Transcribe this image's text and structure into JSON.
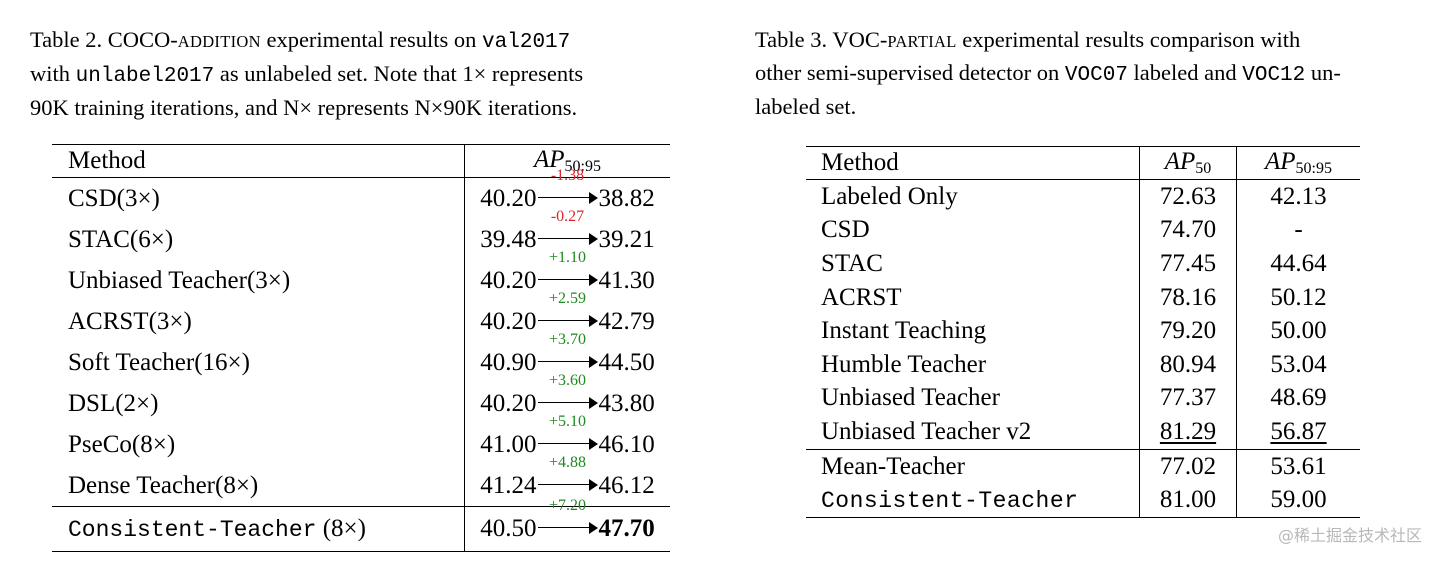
{
  "table2": {
    "caption": {
      "line1": {
        "a": "Table 2.  COCO-",
        "sc": "ADDITION",
        "b": " experimental results on ",
        "mono": "val2017"
      },
      "line2": {
        "a": "with ",
        "mono": "unlabel2017",
        "b": " as unlabeled set.  Note that 1× represents"
      },
      "line3": {
        "a": "90K training iterations, and N× represents N×90K iterations."
      }
    },
    "header": {
      "method": "Method",
      "metric_base": "AP",
      "metric_sub": "50:95"
    },
    "rows": [
      {
        "method": "CSD(3×)",
        "before": "40.20",
        "delta": "-1.38",
        "delta_color": "#d9262c",
        "after": "38.82"
      },
      {
        "method": "STAC(6×)",
        "before": "39.48",
        "delta": "-0.27",
        "delta_color": "#d9262c",
        "after": "39.21"
      },
      {
        "method": "Unbiased Teacher(3×)",
        "before": "40.20",
        "delta": "+1.10",
        "delta_color": "#1f8a1f",
        "after": "41.30"
      },
      {
        "method": "ACRST(3×)",
        "before": "40.20",
        "delta": "+2.59",
        "delta_color": "#1f8a1f",
        "after": "42.79"
      },
      {
        "method": "Soft Teacher(16×)",
        "before": "40.90",
        "delta": "+3.70",
        "delta_color": "#1f8a1f",
        "after": "44.50"
      },
      {
        "method": "DSL(2×)",
        "before": "40.20",
        "delta": "+3.60",
        "delta_color": "#1f8a1f",
        "after": "43.80"
      },
      {
        "method": "PseCo(8×)",
        "before": "41.00",
        "delta": "+5.10",
        "delta_color": "#1f8a1f",
        "after": "46.10"
      },
      {
        "method": "Dense Teacher(8×)",
        "before": "41.24",
        "delta": "+4.88",
        "delta_color": "#1f8a1f",
        "after": "46.12"
      }
    ],
    "final": {
      "method_mono": "Consistent-Teacher",
      "method_suffix": " (8×)",
      "before": "40.50",
      "delta": "+7.20",
      "delta_color": "#1f8a1f",
      "after": "47.70"
    }
  },
  "table3": {
    "caption": {
      "line1": {
        "a": "Table 3.  VOC-",
        "sc": "PARTIAL",
        "b": " experimental results comparison with"
      },
      "line2": {
        "a": "other semi-supervised detector on ",
        "mono1": "VOC07",
        "b": " labeled and ",
        "mono2": "VOC12",
        "c": " un-"
      },
      "line3": {
        "a": "labeled set."
      }
    },
    "header": {
      "method": "Method",
      "ap50_base": "AP",
      "ap50_sub": "50",
      "ap5095_base": "AP",
      "ap5095_sub": "50:95"
    },
    "rows": [
      {
        "method": "Labeled Only",
        "ap50": "72.63",
        "ap5095": "42.13"
      },
      {
        "method": "CSD",
        "ap50": "74.70",
        "ap5095": "-"
      },
      {
        "method": "STAC",
        "ap50": "77.45",
        "ap5095": "44.64"
      },
      {
        "method": "ACRST",
        "ap50": "78.16",
        "ap5095": "50.12"
      },
      {
        "method": "Instant Teaching",
        "ap50": "79.20",
        "ap5095": "50.00"
      },
      {
        "method": "Humble Teacher",
        "ap50": "80.94",
        "ap5095": "53.04"
      },
      {
        "method": "Unbiased Teacher",
        "ap50": "77.37",
        "ap5095": "48.69"
      },
      {
        "method": "Unbiased Teacher v2",
        "ap50": "81.29",
        "ap5095": "56.87"
      },
      {
        "method": "Mean-Teacher",
        "ap50": "77.02",
        "ap5095": "53.61"
      }
    ],
    "final": {
      "method": "Consistent-Teacher",
      "ap50": "81.00",
      "ap5095": "59.00"
    }
  },
  "watermark": "@稀土掘金技术社区"
}
